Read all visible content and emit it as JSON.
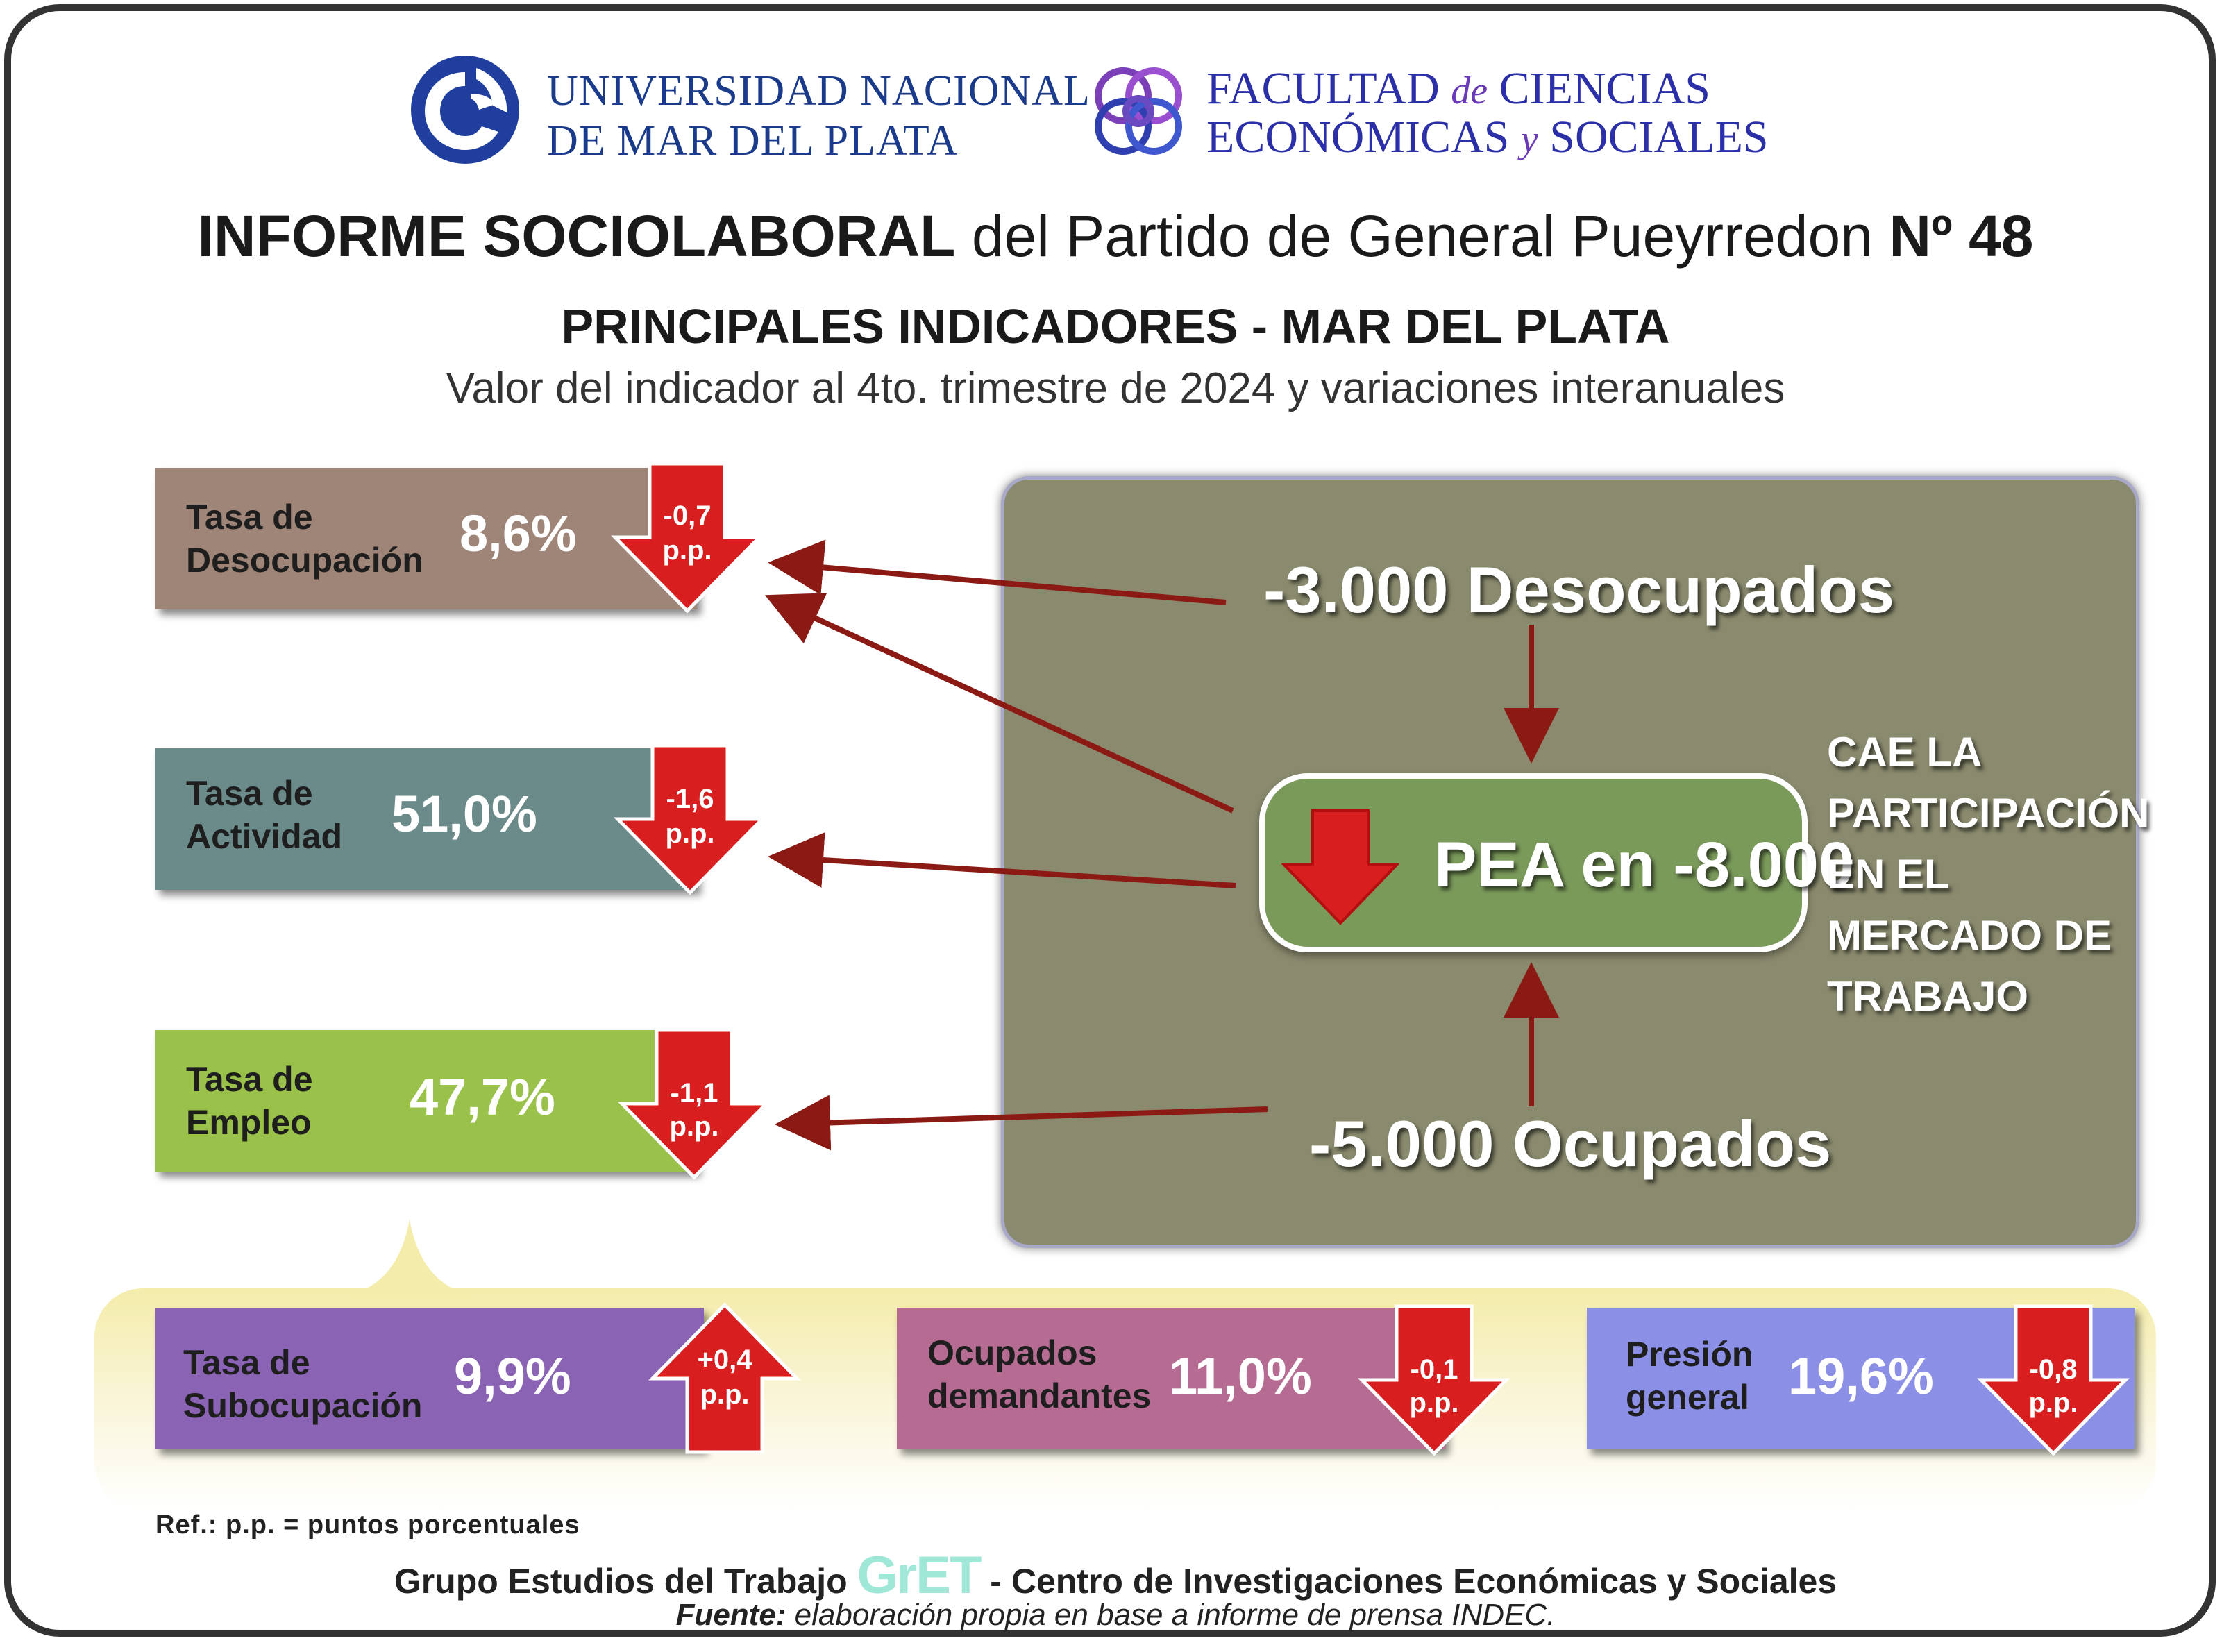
{
  "logos": {
    "unmdp_line1": "UNIVERSIDAD NACIONAL",
    "unmdp_line2": "DE MAR DEL PLATA",
    "faces_line1_a": "FACULTAD ",
    "faces_line1_de": "de",
    "faces_line1_b": " CIENCIAS",
    "faces_line2_a": "ECONÓMICAS ",
    "faces_line2_y": "y",
    "faces_line2_b": " SOCIALES"
  },
  "header": {
    "title_bold": "INFORME SOCIOLABORAL",
    "title_mid": "del Partido de General Pueyrredon",
    "title_num": "Nº 48",
    "subtitle": "PRINCIPALES INDICADORES - MAR DEL PLATA",
    "subtitle2": "Valor del indicador al 4to. trimestre de 2024 y variaciones interanuales"
  },
  "indicators": [
    {
      "line1": "Tasa de",
      "line2": "Desocupación",
      "value": "8,6%",
      "delta1": "-0,7",
      "delta2": "p.p.",
      "direction": "down",
      "color": "#9e8577"
    },
    {
      "line1": "Tasa de",
      "line2": "Actividad",
      "value": "51,0%",
      "delta1": "-1,6",
      "delta2": "p.p.",
      "direction": "down",
      "color": "#6b8a8a"
    },
    {
      "line1": "Tasa de",
      "line2": "Empleo",
      "value": "47,7%",
      "delta1": "-1,1",
      "delta2": "p.p.",
      "direction": "down",
      "color": "#9ac24a"
    }
  ],
  "bottom_indicators": [
    {
      "line1": "Tasa de",
      "line2": "Subocupación",
      "value": "9,9%",
      "delta1": "+0,4",
      "delta2": "p.p.",
      "direction": "up",
      "color": "#8a63b5"
    },
    {
      "line1": "Ocupados",
      "line2": "demandantes",
      "value": "11,0%",
      "delta1": "-0,1",
      "delta2": "p.p.",
      "direction": "down",
      "color": "#b56b92"
    },
    {
      "line1": "Presión",
      "line2": "general",
      "value": "19,6%",
      "delta1": "-0,8",
      "delta2": "p.p.",
      "direction": "down",
      "color": "#8b8fe6"
    }
  ],
  "panel": {
    "desocupados": "-3.000 Desocupados",
    "pea": "PEA en -8.000",
    "ocupados": "-5.000 Ocupados",
    "side_text": [
      "CAE LA",
      "PARTICIPACIÓN",
      "EN EL",
      "MERCADO DE",
      "TRABAJO"
    ],
    "bg_color": "#8a8a6e",
    "pea_color": "#7a9a5a"
  },
  "footer": {
    "ref": "Ref.: p.p. = puntos porcentuales",
    "group_a": "Grupo Estudios del Trabajo",
    "gret_logo": "GrET",
    "group_b": "- Centro de Investigaciones Económicas y Sociales",
    "fuente_label": "Fuente:",
    "fuente_text": " elaboración propia en base a informe de prensa INDEC."
  },
  "colors": {
    "arrow_red": "#d81e1e",
    "connector": "#8b1a14"
  }
}
